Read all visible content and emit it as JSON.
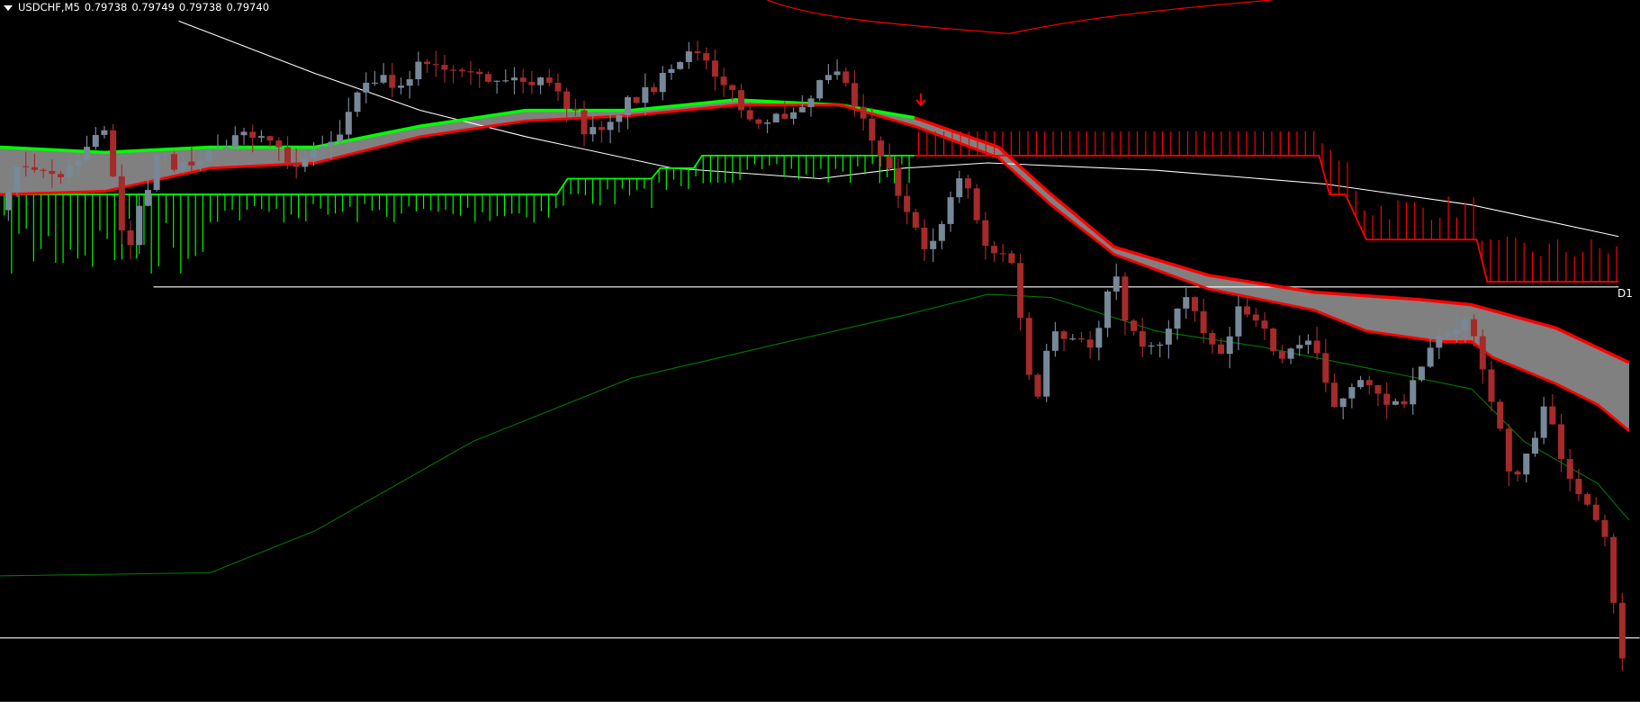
{
  "header": {
    "symbol": "USDCHF,M5",
    "open": "0.79738",
    "high": "0.79749",
    "low": "0.79738",
    "close": "0.79740"
  },
  "level_label": "D1",
  "colors": {
    "background": "#000000",
    "bull_candle": "#778899",
    "bear_candle": "#a52a2a",
    "cloud_fill": "#808080",
    "band_up": "#00ff00",
    "band_down": "#ff0000",
    "slow_ma": "#ffffff",
    "long_ma": "#008000",
    "level_line": "#ffffff",
    "signal_arrow": "#ff0000"
  },
  "chart_data": {
    "type": "candlestick",
    "symbol": "USDCHF",
    "timeframe": "M5",
    "last_bar": {
      "open": 0.79738,
      "high": 0.79749,
      "low": 0.79738,
      "close": 0.7974
    },
    "trend": "down",
    "signals": [
      "sell-arrow"
    ],
    "grid": false
  }
}
